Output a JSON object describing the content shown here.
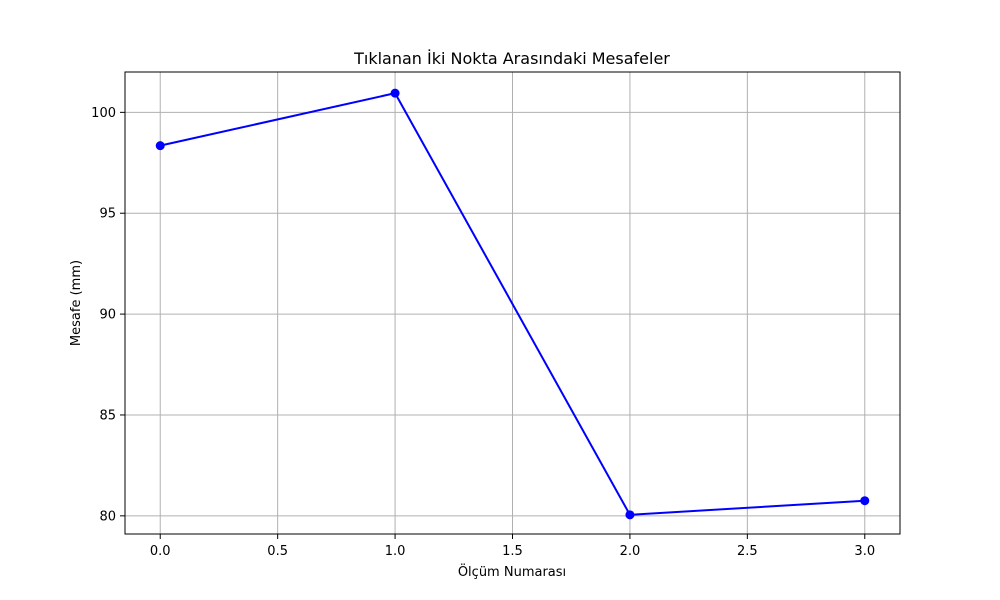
{
  "chart_data": {
    "type": "line",
    "title": "Tıklanan İki Nokta Arasındaki Mesafeler",
    "xlabel": "Ölçüm Numarası",
    "ylabel": "Mesafe (mm)",
    "xlim": [
      -0.15,
      3.15
    ],
    "ylim": [
      79.1,
      102.0
    ],
    "xticks": [
      "0.0",
      "0.5",
      "1.0",
      "1.5",
      "2.0",
      "2.5",
      "3.0"
    ],
    "yticks": [
      "80",
      "85",
      "90",
      "95",
      "100"
    ],
    "grid": true,
    "series": [
      {
        "color": "#0000ff",
        "marker": "circle",
        "x": [
          0,
          1,
          2,
          3
        ],
        "y": [
          98.35,
          100.95,
          80.05,
          80.75
        ]
      }
    ]
  }
}
